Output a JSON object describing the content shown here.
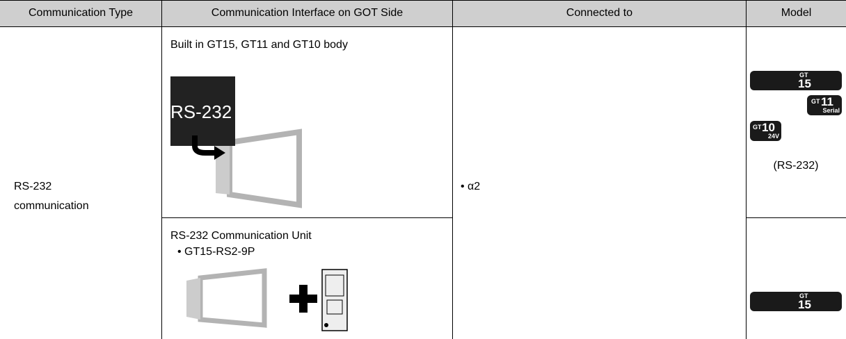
{
  "table": {
    "header": [
      "Communication Type",
      "Communication Interface on GOT Side",
      "Connected to",
      "Model"
    ],
    "rows": [
      {
        "type": [
          "RS-232",
          "communication"
        ],
        "interface": {
          "title": "Built in GT15, GT11 and GT10 body",
          "icon_label": "RS-232"
        },
        "connected_to": "• α2",
        "models": [
          {
            "prefix": "GT",
            "number": "15"
          },
          {
            "prefix": "GT",
            "number": "11",
            "suffix": "Serial"
          },
          {
            "prefix": "GT",
            "number": "10",
            "suffix": "24V"
          }
        ],
        "model_note": "(RS-232)"
      },
      {
        "interface": {
          "title": "RS-232 Communication Unit",
          "item": "• GT15-RS2-9P"
        },
        "models": [
          {
            "prefix": "GT",
            "number": "15"
          }
        ]
      }
    ]
  }
}
